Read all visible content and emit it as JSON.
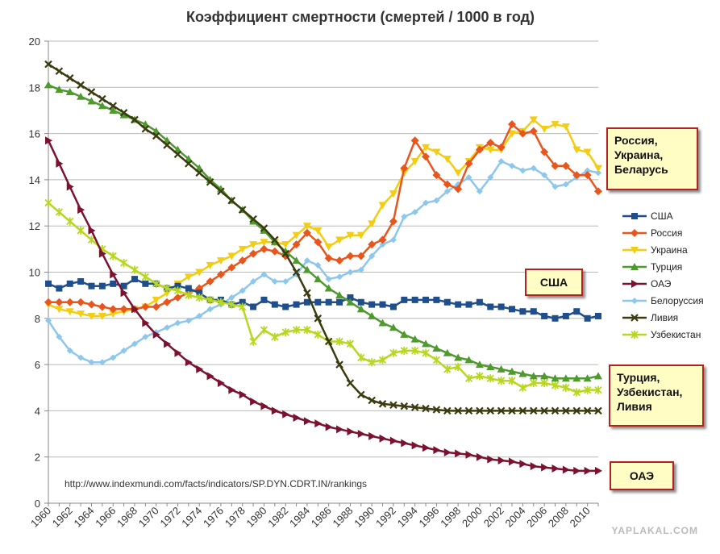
{
  "chart_data": {
    "type": "line",
    "title": "Коэффициент смертности (смертей / 1000 в год)",
    "xlabel": "",
    "ylabel": "",
    "xlim": [
      1960,
      2011
    ],
    "ylim": [
      0,
      20
    ],
    "y_ticks": [
      0,
      2,
      4,
      6,
      8,
      10,
      12,
      14,
      16,
      18,
      20
    ],
    "x_ticks": [
      1960,
      1962,
      1964,
      1966,
      1968,
      1970,
      1972,
      1974,
      1976,
      1978,
      1980,
      1982,
      1984,
      1986,
      1988,
      1990,
      1992,
      1994,
      1996,
      1998,
      2000,
      2002,
      2004,
      2006,
      2008,
      2010
    ],
    "grid": "horizontal",
    "legend_position": "right",
    "x": [
      1960,
      1961,
      1962,
      1963,
      1964,
      1965,
      1966,
      1967,
      1968,
      1969,
      1970,
      1971,
      1972,
      1973,
      1974,
      1975,
      1976,
      1977,
      1978,
      1979,
      1980,
      1981,
      1982,
      1983,
      1984,
      1985,
      1986,
      1987,
      1988,
      1989,
      1990,
      1991,
      1992,
      1993,
      1994,
      1995,
      1996,
      1997,
      1998,
      1999,
      2000,
      2001,
      2002,
      2003,
      2004,
      2005,
      2006,
      2007,
      2008,
      2009,
      2010,
      2011
    ],
    "series": [
      {
        "name": "США",
        "color": "#1f4e8c",
        "marker": "square",
        "values": [
          9.5,
          9.3,
          9.5,
          9.6,
          9.4,
          9.4,
          9.5,
          9.4,
          9.7,
          9.5,
          9.5,
          9.3,
          9.4,
          9.3,
          9.1,
          8.8,
          8.8,
          8.6,
          8.7,
          8.5,
          8.8,
          8.6,
          8.5,
          8.6,
          8.7,
          8.7,
          8.7,
          8.7,
          8.9,
          8.7,
          8.6,
          8.6,
          8.5,
          8.8,
          8.8,
          8.8,
          8.8,
          8.7,
          8.6,
          8.6,
          8.7,
          8.5,
          8.5,
          8.4,
          8.3,
          8.3,
          8.1,
          8.0,
          8.1,
          8.3,
          8.0,
          8.1
        ]
      },
      {
        "name": "Россия",
        "color": "#e8561e",
        "marker": "diamond",
        "values": [
          8.7,
          8.7,
          8.7,
          8.7,
          8.6,
          8.5,
          8.4,
          8.4,
          8.4,
          8.5,
          8.5,
          8.7,
          8.9,
          9.1,
          9.3,
          9.6,
          9.9,
          10.2,
          10.5,
          10.8,
          11.0,
          10.9,
          10.7,
          11.2,
          11.7,
          11.3,
          10.6,
          10.5,
          10.7,
          10.7,
          11.2,
          11.4,
          12.2,
          14.5,
          15.7,
          15.0,
          14.2,
          13.8,
          13.6,
          14.7,
          15.3,
          15.6,
          15.4,
          16.4,
          16.0,
          16.1,
          15.2,
          14.6,
          14.6,
          14.2,
          14.2,
          13.5
        ]
      },
      {
        "name": "Украина",
        "color": "#f2cd13",
        "marker": "triangle-down",
        "values": [
          8.6,
          8.4,
          8.3,
          8.2,
          8.1,
          8.1,
          8.2,
          8.3,
          8.4,
          8.5,
          8.8,
          9.1,
          9.5,
          9.8,
          10.0,
          10.3,
          10.5,
          10.7,
          11.0,
          11.2,
          11.3,
          11.3,
          11.2,
          11.6,
          12.0,
          11.8,
          11.1,
          11.4,
          11.6,
          11.6,
          12.1,
          12.9,
          13.4,
          14.3,
          14.8,
          15.4,
          15.2,
          14.9,
          14.3,
          14.8,
          15.4,
          15.3,
          15.3,
          16.0,
          16.1,
          16.6,
          16.2,
          16.4,
          16.3,
          15.3,
          15.2,
          14.5
        ]
      },
      {
        "name": "Турция",
        "color": "#4e9a2e",
        "marker": "triangle-up",
        "values": [
          18.1,
          17.9,
          17.8,
          17.6,
          17.4,
          17.2,
          17.0,
          16.8,
          16.6,
          16.4,
          16.1,
          15.7,
          15.3,
          14.9,
          14.5,
          14.0,
          13.6,
          13.1,
          12.7,
          12.2,
          11.8,
          11.3,
          10.9,
          10.5,
          10.1,
          9.7,
          9.3,
          9.0,
          8.7,
          8.4,
          8.1,
          7.8,
          7.6,
          7.3,
          7.1,
          6.9,
          6.7,
          6.5,
          6.3,
          6.2,
          6.0,
          5.9,
          5.8,
          5.7,
          5.6,
          5.5,
          5.5,
          5.4,
          5.4,
          5.4,
          5.4,
          5.5
        ]
      },
      {
        "name": "ОАЭ",
        "color": "#7a1230",
        "marker": "triangle-right",
        "values": [
          15.7,
          14.7,
          13.7,
          12.7,
          11.8,
          10.8,
          9.9,
          9.1,
          8.4,
          7.8,
          7.3,
          6.9,
          6.5,
          6.1,
          5.8,
          5.5,
          5.2,
          4.9,
          4.7,
          4.4,
          4.2,
          4.0,
          3.85,
          3.7,
          3.55,
          3.45,
          3.3,
          3.2,
          3.1,
          3.0,
          2.9,
          2.8,
          2.7,
          2.6,
          2.5,
          2.4,
          2.3,
          2.2,
          2.15,
          2.1,
          2.0,
          1.9,
          1.85,
          1.8,
          1.7,
          1.6,
          1.55,
          1.5,
          1.45,
          1.4,
          1.4,
          1.4
        ]
      },
      {
        "name": "Белоруссия",
        "color": "#8ec7ec",
        "marker": "diamond-small",
        "values": [
          7.9,
          7.2,
          6.6,
          6.3,
          6.1,
          6.1,
          6.3,
          6.6,
          6.9,
          7.2,
          7.4,
          7.6,
          7.8,
          7.9,
          8.1,
          8.4,
          8.6,
          8.9,
          9.2,
          9.6,
          9.9,
          9.6,
          9.6,
          9.9,
          10.5,
          10.3,
          9.7,
          9.8,
          10.0,
          10.1,
          10.7,
          11.2,
          11.4,
          12.4,
          12.6,
          13.0,
          13.1,
          13.5,
          13.8,
          14.1,
          13.5,
          14.1,
          14.8,
          14.6,
          14.4,
          14.5,
          14.2,
          13.7,
          13.8,
          14.1,
          14.4,
          14.3
        ]
      },
      {
        "name": "Ливия",
        "color": "#3b3b10",
        "marker": "x",
        "values": [
          19.0,
          18.7,
          18.4,
          18.1,
          17.8,
          17.5,
          17.2,
          16.9,
          16.6,
          16.2,
          15.9,
          15.5,
          15.1,
          14.7,
          14.3,
          13.9,
          13.5,
          13.1,
          12.7,
          12.3,
          11.9,
          11.4,
          10.8,
          10.0,
          9.1,
          8.0,
          7.0,
          6.0,
          5.2,
          4.7,
          4.45,
          4.3,
          4.25,
          4.2,
          4.15,
          4.1,
          4.05,
          4.0,
          4.0,
          4.0,
          4.0,
          4.0,
          4.0,
          4.0,
          4.0,
          4.0,
          4.0,
          4.0,
          4.0,
          4.0,
          4.0,
          4.0
        ]
      },
      {
        "name": "Узбекистан",
        "color": "#b9d620",
        "marker": "star",
        "values": [
          13.0,
          12.6,
          12.2,
          11.8,
          11.4,
          11.0,
          10.7,
          10.4,
          10.1,
          9.8,
          9.5,
          9.3,
          9.2,
          9.0,
          8.9,
          8.8,
          8.7,
          8.6,
          8.5,
          7.0,
          7.5,
          7.2,
          7.4,
          7.5,
          7.5,
          7.3,
          7.0,
          7.0,
          6.9,
          6.3,
          6.1,
          6.2,
          6.5,
          6.6,
          6.6,
          6.5,
          6.2,
          5.8,
          5.9,
          5.4,
          5.5,
          5.4,
          5.3,
          5.3,
          5.0,
          5.2,
          5.2,
          5.1,
          5.0,
          4.8,
          4.9,
          4.9
        ]
      }
    ],
    "annotations": {
      "source_url": "http://www.indexmundi.com/facts/indicators/SP.DYN.CDRT.IN/rankings",
      "callouts": [
        {
          "id": "russia-group",
          "text": "Россия,\nУкраина,\nБеларусь"
        },
        {
          "id": "usa",
          "text": "США"
        },
        {
          "id": "turkey-group",
          "text": "Турция,\nУзбекистан,\nЛивия"
        },
        {
          "id": "uae",
          "text": "ОАЭ"
        }
      ],
      "watermark": "YAPLAKAL.COM"
    }
  }
}
